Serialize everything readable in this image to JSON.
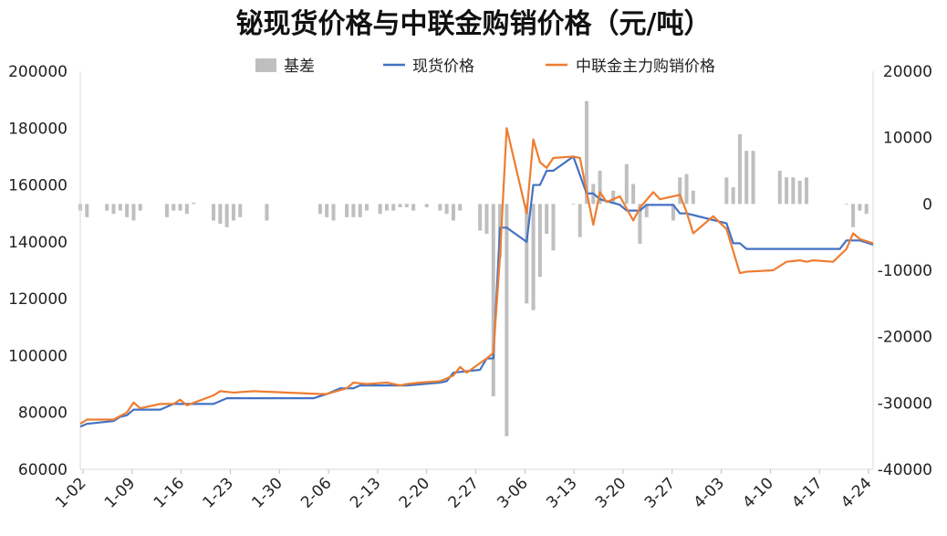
{
  "chart_data": {
    "type": "bar+line",
    "title": "铋现货价格与中联金购销价格（元/吨）",
    "legend": [
      "基差",
      "现货价格",
      "中联金主力购销价格"
    ],
    "legend_position": "top",
    "colors": {
      "basis": "#bfbfbf",
      "spot": "#4472c4",
      "zhonglian": "#ed7d31"
    },
    "x_tick_labels": [
      "1-02",
      "1-09",
      "1-16",
      "1-23",
      "1-30",
      "2-06",
      "2-13",
      "2-20",
      "2-27",
      "3-06",
      "3-13",
      "3-20",
      "3-27",
      "4-03",
      "4-10",
      "4-17",
      "4-24"
    ],
    "y_left": {
      "min": 60000,
      "max": 200000,
      "ticks": [
        "60000",
        "80000",
        "100000",
        "120000",
        "140000",
        "160000",
        "180000",
        "200000"
      ]
    },
    "y_right": {
      "min": -40000,
      "max": 20000,
      "ticks": [
        "-40000",
        "-30000",
        "-20000",
        "-10000",
        "0",
        "10000",
        "20000"
      ]
    },
    "x_range": [
      0,
      119
    ],
    "spot_price": [
      [
        0,
        75000
      ],
      [
        1,
        76000
      ],
      [
        5,
        77000
      ],
      [
        6,
        78500
      ],
      [
        7,
        79000
      ],
      [
        8,
        81000
      ],
      [
        12,
        81000
      ],
      [
        14,
        83000
      ],
      [
        16,
        83000
      ],
      [
        17,
        83000
      ],
      [
        20,
        83000
      ],
      [
        22,
        85000
      ],
      [
        35,
        85000
      ],
      [
        37,
        86500
      ],
      [
        39,
        88500
      ],
      [
        41,
        88500
      ],
      [
        42,
        89500
      ],
      [
        49,
        89500
      ],
      [
        54,
        90500
      ],
      [
        55,
        91000
      ],
      [
        56,
        94000
      ],
      [
        60,
        95000
      ],
      [
        61,
        99000
      ],
      [
        62,
        99000
      ],
      [
        63,
        145000
      ],
      [
        64,
        145000
      ],
      [
        67,
        140000
      ],
      [
        68,
        160000
      ],
      [
        69,
        160000
      ],
      [
        70,
        165000
      ],
      [
        71,
        165000
      ],
      [
        74,
        170000
      ],
      [
        76,
        157000
      ],
      [
        77,
        157000
      ],
      [
        78,
        155000
      ],
      [
        81,
        153000
      ],
      [
        82,
        151000
      ],
      [
        84,
        151000
      ],
      [
        85,
        153000
      ],
      [
        89,
        153000
      ],
      [
        90,
        150000
      ],
      [
        91,
        150000
      ],
      [
        97,
        146500
      ],
      [
        98,
        139500
      ],
      [
        99,
        139500
      ],
      [
        100,
        137500
      ],
      [
        113,
        137500
      ],
      [
        114,
        137500
      ],
      [
        115,
        140500
      ],
      [
        117,
        140500
      ],
      [
        119,
        139000
      ]
    ],
    "zhonglian_price": [
      [
        0,
        76000
      ],
      [
        1,
        77500
      ],
      [
        5,
        77500
      ],
      [
        7,
        80000
      ],
      [
        8,
        83500
      ],
      [
        9,
        81500
      ],
      [
        12,
        83000
      ],
      [
        14,
        83000
      ],
      [
        15,
        84500
      ],
      [
        16,
        82500
      ],
      [
        20,
        86000
      ],
      [
        21,
        87500
      ],
      [
        23,
        87000
      ],
      [
        26,
        87500
      ],
      [
        36,
        86500
      ],
      [
        37,
        86500
      ],
      [
        40,
        88500
      ],
      [
        41,
        90500
      ],
      [
        43,
        90000
      ],
      [
        46,
        90500
      ],
      [
        48,
        89500
      ],
      [
        49,
        90000
      ],
      [
        51,
        90500
      ],
      [
        54,
        91000
      ],
      [
        56,
        93000
      ],
      [
        57,
        96000
      ],
      [
        58,
        94000
      ],
      [
        61,
        99000
      ],
      [
        62,
        101000
      ],
      [
        63,
        135000
      ],
      [
        64,
        180000
      ],
      [
        67,
        150000
      ],
      [
        68,
        176000
      ],
      [
        69,
        168000
      ],
      [
        70,
        166000
      ],
      [
        71,
        169500
      ],
      [
        74,
        170000
      ],
      [
        75,
        169500
      ],
      [
        77,
        146000
      ],
      [
        78,
        157500
      ],
      [
        79,
        154000
      ],
      [
        81,
        156000
      ],
      [
        83,
        147500
      ],
      [
        84,
        152000
      ],
      [
        86,
        157500
      ],
      [
        87,
        155000
      ],
      [
        90,
        156500
      ],
      [
        91,
        150500
      ],
      [
        92,
        143000
      ],
      [
        95,
        149000
      ],
      [
        97,
        144500
      ],
      [
        99,
        129000
      ],
      [
        100,
        129500
      ],
      [
        104,
        130000
      ],
      [
        106,
        133000
      ],
      [
        108,
        133500
      ],
      [
        109,
        133000
      ],
      [
        110,
        133500
      ],
      [
        113,
        133000
      ],
      [
        115,
        137500
      ],
      [
        116,
        143000
      ],
      [
        117,
        141000
      ],
      [
        119,
        139500
      ]
    ],
    "basis": [
      [
        0,
        -1000
      ],
      [
        1,
        -2000
      ],
      [
        4,
        -1000
      ],
      [
        5,
        -1500
      ],
      [
        6,
        -1000
      ],
      [
        7,
        -2000
      ],
      [
        8,
        -2500
      ],
      [
        9,
        -1000
      ],
      [
        13,
        -2000
      ],
      [
        14,
        -1000
      ],
      [
        15,
        -1000
      ],
      [
        16,
        -1500
      ],
      [
        17,
        200
      ],
      [
        20,
        -2500
      ],
      [
        21,
        -3000
      ],
      [
        22,
        -3500
      ],
      [
        23,
        -2500
      ],
      [
        24,
        -2000
      ],
      [
        28,
        -2500
      ],
      [
        36,
        -1500
      ],
      [
        37,
        -2000
      ],
      [
        38,
        -2500
      ],
      [
        40,
        -2000
      ],
      [
        41,
        -2000
      ],
      [
        42,
        -2000
      ],
      [
        43,
        -1000
      ],
      [
        45,
        -1500
      ],
      [
        46,
        -1000
      ],
      [
        47,
        -1000
      ],
      [
        48,
        -500
      ],
      [
        49,
        -500
      ],
      [
        50,
        -1000
      ],
      [
        52,
        -500
      ],
      [
        54,
        -1000
      ],
      [
        55,
        -1500
      ],
      [
        56,
        -2500
      ],
      [
        57,
        -1000
      ],
      [
        60,
        -4000
      ],
      [
        61,
        -4500
      ],
      [
        62,
        -29000
      ],
      [
        63,
        -8000
      ],
      [
        64,
        -35000
      ],
      [
        67,
        -15000
      ],
      [
        68,
        -16000
      ],
      [
        69,
        -11000
      ],
      [
        70,
        -4500
      ],
      [
        71,
        -7000
      ],
      [
        74,
        0
      ],
      [
        75,
        -5000
      ],
      [
        76,
        15500
      ],
      [
        77,
        3000
      ],
      [
        78,
        5000
      ],
      [
        80,
        2000
      ],
      [
        82,
        6000
      ],
      [
        83,
        3000
      ],
      [
        84,
        -6000
      ],
      [
        85,
        -2000
      ],
      [
        86,
        0
      ],
      [
        89,
        -2500
      ],
      [
        90,
        4000
      ],
      [
        91,
        4500
      ],
      [
        92,
        2000
      ],
      [
        97,
        4000
      ],
      [
        98,
        2500
      ],
      [
        99,
        10500
      ],
      [
        100,
        8000
      ],
      [
        101,
        8000
      ],
      [
        105,
        5000
      ],
      [
        106,
        4000
      ],
      [
        107,
        4000
      ],
      [
        108,
        3500
      ],
      [
        109,
        4000
      ],
      [
        115,
        0
      ],
      [
        116,
        -3500
      ],
      [
        117,
        -1000
      ],
      [
        118,
        -1500
      ]
    ]
  }
}
